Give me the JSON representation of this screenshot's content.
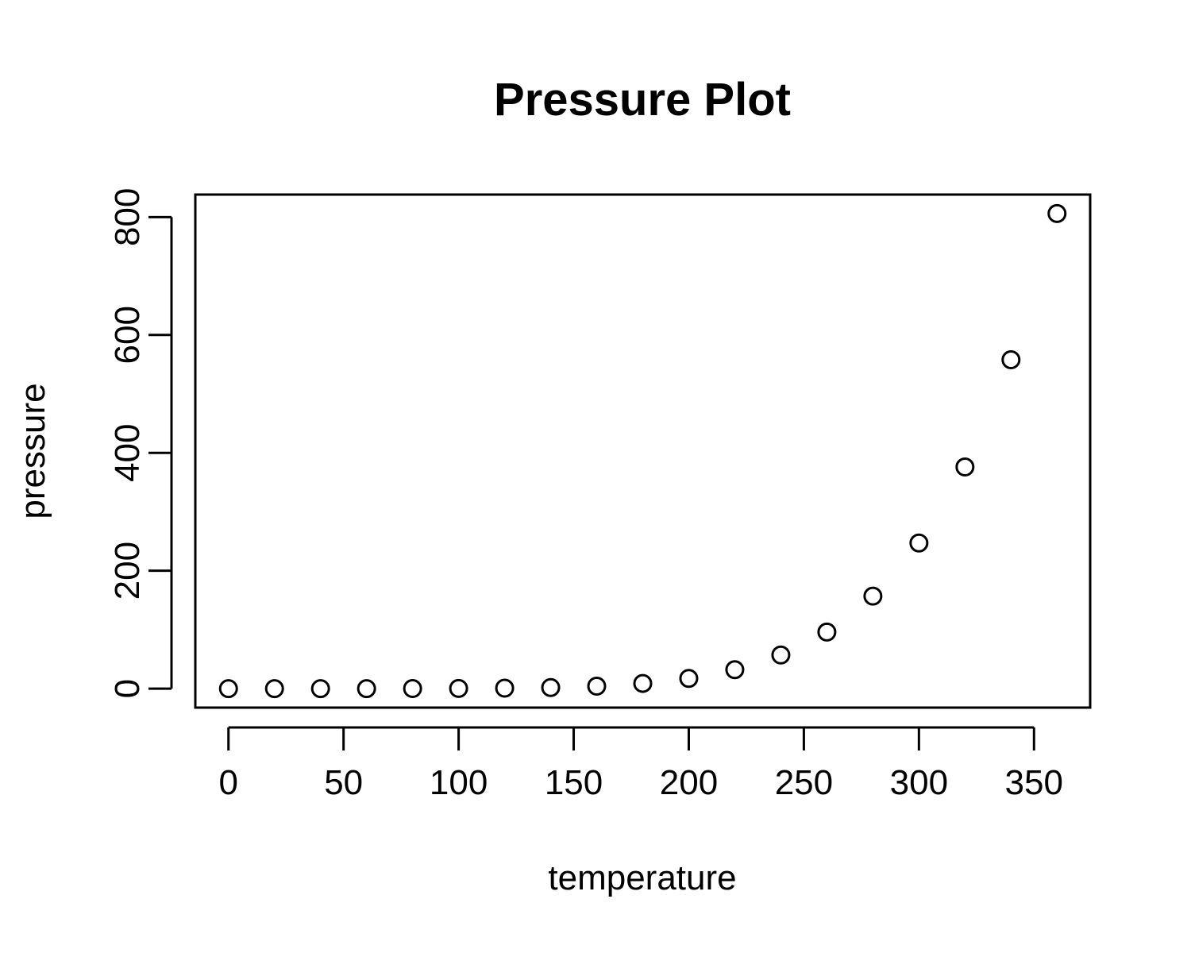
{
  "chart_data": {
    "type": "scatter",
    "title": "Pressure Plot",
    "xlabel": "temperature",
    "ylabel": "pressure",
    "x": [
      0,
      20,
      40,
      60,
      80,
      100,
      120,
      140,
      160,
      180,
      200,
      220,
      240,
      260,
      280,
      300,
      320,
      340,
      360
    ],
    "y": [
      0.0002,
      0.0012,
      0.006,
      0.03,
      0.09,
      0.27,
      0.75,
      1.85,
      4.2,
      8.8,
      17.3,
      32.1,
      57.0,
      96.0,
      157.0,
      247.0,
      376.0,
      558.0,
      806.0
    ],
    "xlim": [
      -14.4,
      374.4
    ],
    "ylim": [
      -32.2,
      838.2
    ],
    "xticks": [
      0,
      50,
      100,
      150,
      200,
      250,
      300,
      350
    ],
    "yticks": [
      0,
      200,
      400,
      600,
      800
    ],
    "xtick_labels": [
      "0",
      "50",
      "100",
      "150",
      "200",
      "250",
      "300",
      "350"
    ],
    "ytick_labels": [
      "0",
      "200",
      "400",
      "600",
      "800"
    ],
    "marker": "open-circle",
    "grid": false,
    "legend": "none",
    "colors": {
      "points": "#000000",
      "axes": "#000000",
      "background": "#ffffff"
    }
  }
}
